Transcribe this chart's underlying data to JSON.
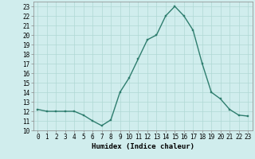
{
  "x": [
    0,
    1,
    2,
    3,
    4,
    5,
    6,
    7,
    8,
    9,
    10,
    11,
    12,
    13,
    14,
    15,
    16,
    17,
    18,
    19,
    20,
    21,
    22,
    23
  ],
  "y": [
    12.2,
    12.0,
    12.0,
    12.0,
    12.0,
    11.6,
    11.0,
    10.5,
    11.1,
    14.0,
    15.5,
    17.5,
    19.5,
    20.0,
    22.0,
    23.0,
    22.0,
    20.5,
    17.0,
    14.0,
    13.3,
    12.2,
    11.6,
    11.5
  ],
  "line_color": "#2e7d6e",
  "bg_color": "#d0eded",
  "grid_color": "#b0d8d4",
  "xlabel": "Humidex (Indice chaleur)",
  "xlim": [
    -0.5,
    23.5
  ],
  "ylim": [
    10,
    23.5
  ],
  "yticks": [
    10,
    11,
    12,
    13,
    14,
    15,
    16,
    17,
    18,
    19,
    20,
    21,
    22,
    23
  ],
  "xticks": [
    0,
    1,
    2,
    3,
    4,
    5,
    6,
    7,
    8,
    9,
    10,
    11,
    12,
    13,
    14,
    15,
    16,
    17,
    18,
    19,
    20,
    21,
    22,
    23
  ],
  "tick_fontsize": 5.5,
  "label_fontsize": 6.5,
  "marker_size": 2.0,
  "line_width": 1.0
}
